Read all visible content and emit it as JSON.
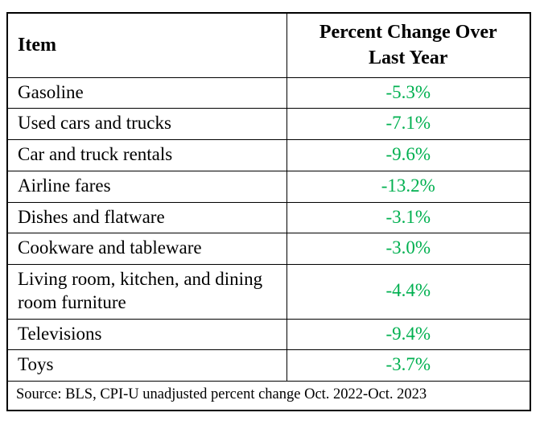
{
  "chart_data": {
    "type": "table",
    "title": "",
    "columns": [
      "Item",
      "Percent Change Over Last Year"
    ],
    "categories": [
      "Gasoline",
      "Used cars and trucks",
      "Car and truck rentals",
      "Airline fares",
      "Dishes and flatware",
      "Cookware and tableware",
      "Living room, kitchen, and dining room furniture",
      "Televisions",
      "Toys"
    ],
    "values": [
      -5.3,
      -7.1,
      -9.6,
      -13.2,
      -3.1,
      -3.0,
      -4.4,
      -9.4,
      -3.7
    ],
    "value_unit": "percent",
    "source": "Source: BLS, CPI-U unadjusted percent change Oct. 2022-Oct. 2023"
  },
  "table": {
    "headers": {
      "item": "Item",
      "change": "Percent Change Over Last Year"
    },
    "rows": [
      {
        "item": "Gasoline",
        "change": "-5.3%"
      },
      {
        "item": "Used cars and trucks",
        "change": "-7.1%"
      },
      {
        "item": "Car and truck rentals",
        "change": "-9.6%"
      },
      {
        "item": "Airline fares",
        "change": "-13.2%"
      },
      {
        "item": "Dishes and flatware",
        "change": "-3.1%"
      },
      {
        "item": "Cookware and tableware",
        "change": "-3.0%"
      },
      {
        "item": "Living room, kitchen, and dining room furniture",
        "change": "-4.4%"
      },
      {
        "item": "Televisions",
        "change": "-9.4%"
      },
      {
        "item": "Toys",
        "change": "-3.7%"
      }
    ],
    "source_note": "Source: BLS, CPI-U unadjusted percent change Oct. 2022-Oct. 2023",
    "colors": {
      "value_text": "#00B050",
      "body_text": "#000000",
      "border": "#000000",
      "background": "#ffffff"
    }
  }
}
